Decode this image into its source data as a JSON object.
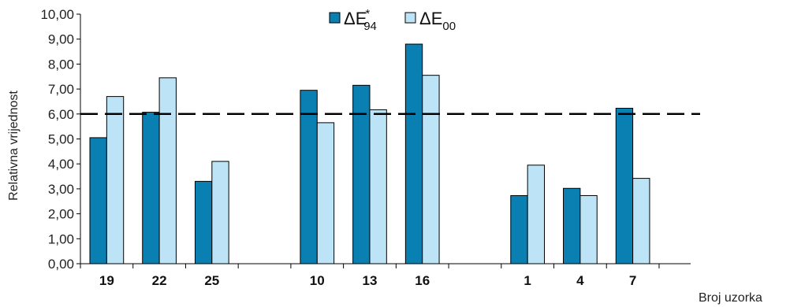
{
  "chart_data": {
    "type": "bar",
    "categories": [
      "19",
      "22",
      "25",
      "10",
      "13",
      "16",
      "1",
      "4",
      "7"
    ],
    "groups": [
      [
        0,
        1,
        2
      ],
      [
        3,
        4,
        5
      ],
      [
        6,
        7,
        8
      ]
    ],
    "series": [
      {
        "name": "ΔE*94",
        "name_base": "ΔE",
        "name_sup": "*",
        "name_sub": "94",
        "color": "#0a7fb2",
        "values": [
          5.05,
          6.07,
          3.3,
          6.95,
          7.15,
          8.8,
          2.73,
          3.02,
          6.23
        ]
      },
      {
        "name": "ΔE00",
        "name_base": "ΔE",
        "name_sup": "",
        "name_sub": "00",
        "color": "#bde4f6",
        "values": [
          6.7,
          7.45,
          4.1,
          5.65,
          6.17,
          7.55,
          3.95,
          2.73,
          3.42
        ]
      }
    ],
    "yticks": [
      "0,00",
      "1,00",
      "2,00",
      "3,00",
      "4,00",
      "5,00",
      "6,00",
      "7,00",
      "8,00",
      "9,00",
      "10,00"
    ],
    "ylim": [
      0,
      10
    ],
    "reference_line": 6.0,
    "xlabel": "Broj uzorka",
    "ylabel": "Relativna vrijednost",
    "legend_position": "top-center",
    "grid": false
  }
}
